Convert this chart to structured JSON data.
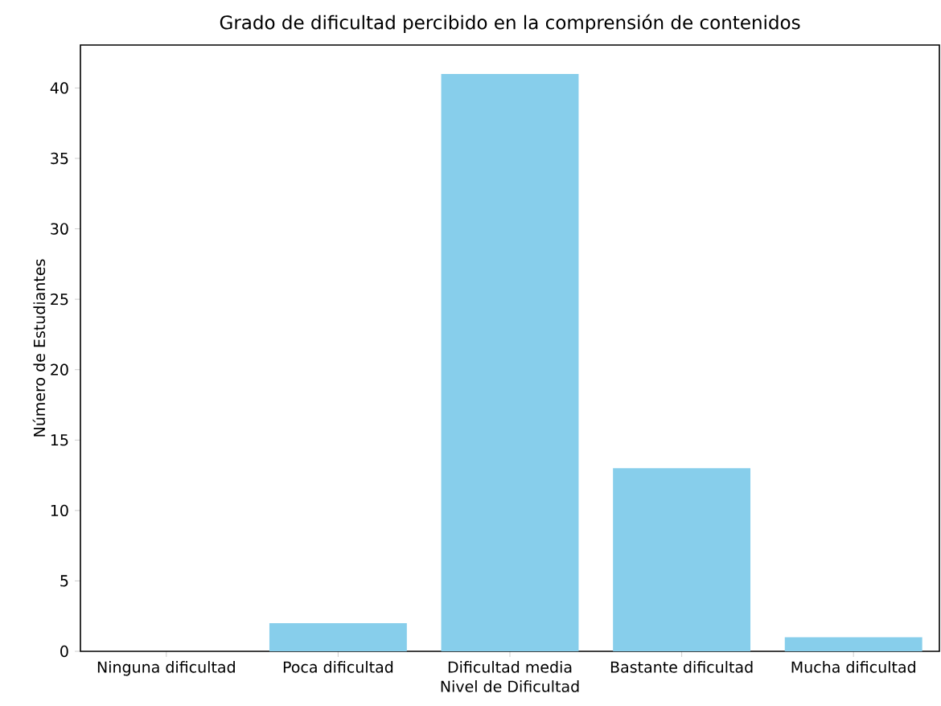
{
  "chart_data": {
    "type": "bar",
    "title": "Grado de dificultad percibido en la comprensión de contenidos",
    "xlabel": "Nivel de Dificultad",
    "ylabel": "Número de Estudiantes",
    "categories": [
      "Ninguna dificultad",
      "Poca dificultad",
      "Dificultad media",
      "Bastante dificultad",
      "Mucha dificultad"
    ],
    "values": [
      0,
      2,
      41,
      13,
      1
    ],
    "color": "#87ceeb",
    "ylim": [
      0,
      43.05
    ],
    "yticks": [
      0,
      5,
      10,
      15,
      20,
      25,
      30,
      35,
      40
    ]
  }
}
